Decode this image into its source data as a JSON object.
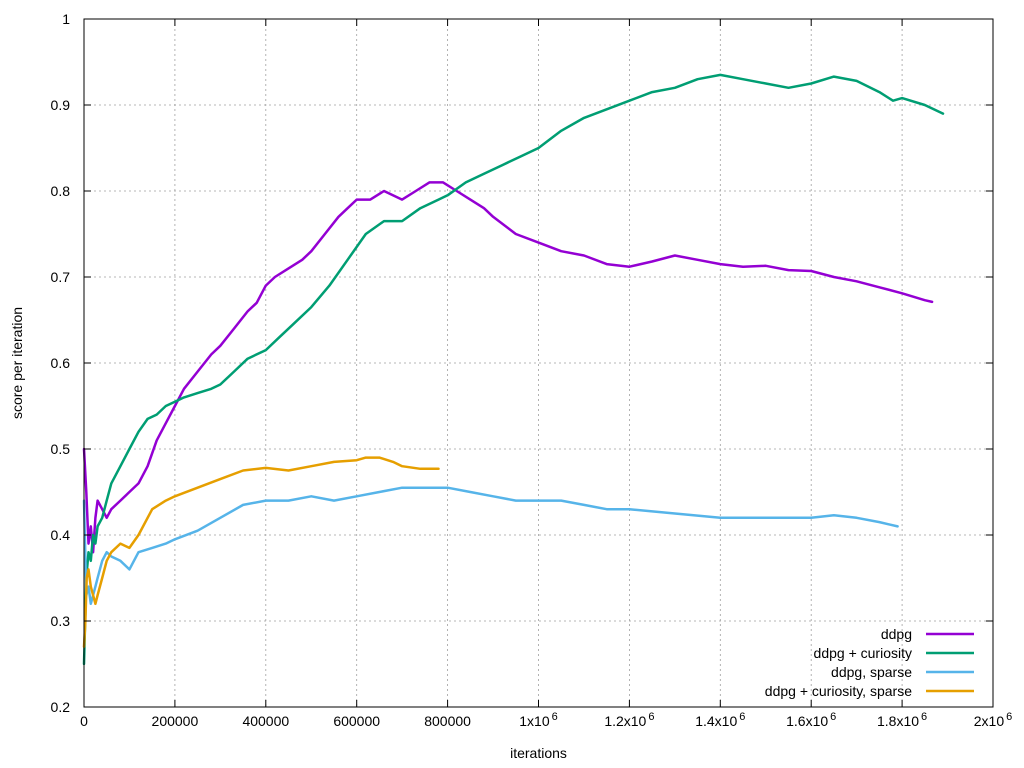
{
  "chart_data": {
    "type": "line",
    "xlabel": "iterations",
    "ylabel": "score per iteration",
    "xlim": [
      0,
      2000000
    ],
    "ylim": [
      0.2,
      1.0
    ],
    "grid": true,
    "legend_position": "bottom-right",
    "x_ticks": [
      {
        "value": 0,
        "base": "0",
        "sup": ""
      },
      {
        "value": 200000,
        "base": "200000",
        "sup": ""
      },
      {
        "value": 400000,
        "base": "400000",
        "sup": ""
      },
      {
        "value": 600000,
        "base": "600000",
        "sup": ""
      },
      {
        "value": 800000,
        "base": "800000",
        "sup": ""
      },
      {
        "value": 1000000,
        "base": "1x10",
        "sup": "6"
      },
      {
        "value": 1200000,
        "base": "1.2x10",
        "sup": "6"
      },
      {
        "value": 1400000,
        "base": "1.4x10",
        "sup": "6"
      },
      {
        "value": 1600000,
        "base": "1.6x10",
        "sup": "6"
      },
      {
        "value": 1800000,
        "base": "1.8x10",
        "sup": "6"
      },
      {
        "value": 2000000,
        "base": "2x10",
        "sup": "6"
      }
    ],
    "y_ticks": [
      {
        "value": 0.2,
        "label": "0.2"
      },
      {
        "value": 0.3,
        "label": "0.3"
      },
      {
        "value": 0.4,
        "label": "0.4"
      },
      {
        "value": 0.5,
        "label": "0.5"
      },
      {
        "value": 0.6,
        "label": "0.6"
      },
      {
        "value": 0.7,
        "label": "0.7"
      },
      {
        "value": 0.8,
        "label": "0.8"
      },
      {
        "value": 0.9,
        "label": "0.9"
      },
      {
        "value": 1.0,
        "label": "1"
      }
    ],
    "series": [
      {
        "name": "ddpg",
        "color": "#9400d3",
        "x": [
          0,
          5000,
          10000,
          15000,
          20000,
          25000,
          30000,
          40000,
          50000,
          60000,
          80000,
          100000,
          120000,
          140000,
          160000,
          180000,
          200000,
          220000,
          250000,
          280000,
          300000,
          330000,
          360000,
          380000,
          400000,
          420000,
          450000,
          480000,
          500000,
          530000,
          560000,
          580000,
          600000,
          630000,
          660000,
          700000,
          730000,
          760000,
          790000,
          820000,
          850000,
          880000,
          900000,
          950000,
          1000000,
          1050000,
          1100000,
          1150000,
          1200000,
          1250000,
          1300000,
          1350000,
          1400000,
          1450000,
          1500000,
          1550000,
          1600000,
          1650000,
          1700000,
          1750000,
          1800000,
          1850000,
          1866000
        ],
        "y": [
          0.5,
          0.45,
          0.39,
          0.41,
          0.38,
          0.42,
          0.44,
          0.43,
          0.42,
          0.43,
          0.44,
          0.45,
          0.46,
          0.48,
          0.51,
          0.53,
          0.55,
          0.57,
          0.59,
          0.61,
          0.62,
          0.64,
          0.66,
          0.67,
          0.69,
          0.7,
          0.71,
          0.72,
          0.73,
          0.75,
          0.77,
          0.78,
          0.79,
          0.79,
          0.8,
          0.79,
          0.8,
          0.81,
          0.81,
          0.8,
          0.79,
          0.78,
          0.77,
          0.75,
          0.74,
          0.73,
          0.725,
          0.715,
          0.712,
          0.718,
          0.725,
          0.72,
          0.715,
          0.712,
          0.713,
          0.708,
          0.707,
          0.7,
          0.695,
          0.688,
          0.681,
          0.673,
          0.671
        ]
      },
      {
        "name": "ddpg + curiosity",
        "color": "#009e73",
        "x": [
          0,
          5000,
          10000,
          15000,
          20000,
          25000,
          30000,
          40000,
          50000,
          60000,
          80000,
          100000,
          120000,
          140000,
          160000,
          180000,
          200000,
          220000,
          250000,
          280000,
          300000,
          330000,
          360000,
          400000,
          430000,
          460000,
          500000,
          540000,
          580000,
          620000,
          660000,
          700000,
          740000,
          780000,
          800000,
          840000,
          880000,
          920000,
          960000,
          1000000,
          1050000,
          1100000,
          1150000,
          1200000,
          1250000,
          1300000,
          1350000,
          1400000,
          1450000,
          1500000,
          1550000,
          1600000,
          1650000,
          1700000,
          1750000,
          1780000,
          1800000,
          1850000,
          1890000
        ],
        "y": [
          0.25,
          0.35,
          0.38,
          0.37,
          0.4,
          0.39,
          0.41,
          0.42,
          0.44,
          0.46,
          0.48,
          0.5,
          0.52,
          0.535,
          0.54,
          0.55,
          0.555,
          0.56,
          0.565,
          0.57,
          0.575,
          0.59,
          0.605,
          0.615,
          0.63,
          0.645,
          0.665,
          0.69,
          0.72,
          0.75,
          0.765,
          0.765,
          0.78,
          0.79,
          0.795,
          0.81,
          0.82,
          0.83,
          0.84,
          0.85,
          0.87,
          0.885,
          0.895,
          0.905,
          0.915,
          0.92,
          0.93,
          0.935,
          0.93,
          0.925,
          0.92,
          0.925,
          0.933,
          0.928,
          0.915,
          0.905,
          0.908,
          0.9,
          0.89
        ]
      },
      {
        "name": "ddpg, sparse",
        "color": "#56b4e9",
        "x": [
          0,
          5000,
          10000,
          15000,
          20000,
          25000,
          30000,
          40000,
          50000,
          60000,
          80000,
          100000,
          120000,
          150000,
          180000,
          200000,
          250000,
          300000,
          350000,
          400000,
          450000,
          500000,
          550000,
          600000,
          650000,
          700000,
          750000,
          800000,
          850000,
          900000,
          950000,
          1000000,
          1050000,
          1100000,
          1150000,
          1200000,
          1300000,
          1400000,
          1500000,
          1600000,
          1650000,
          1700000,
          1750000,
          1790000
        ],
        "y": [
          0.44,
          0.33,
          0.34,
          0.32,
          0.33,
          0.34,
          0.35,
          0.37,
          0.38,
          0.375,
          0.37,
          0.36,
          0.38,
          0.385,
          0.39,
          0.395,
          0.405,
          0.42,
          0.435,
          0.44,
          0.44,
          0.445,
          0.44,
          0.445,
          0.45,
          0.455,
          0.455,
          0.455,
          0.45,
          0.445,
          0.44,
          0.44,
          0.44,
          0.435,
          0.43,
          0.43,
          0.425,
          0.42,
          0.42,
          0.42,
          0.423,
          0.42,
          0.415,
          0.41
        ]
      },
      {
        "name": "ddpg + curiosity, sparse",
        "color": "#e69f00",
        "x": [
          0,
          3000,
          6000,
          10000,
          15000,
          20000,
          25000,
          30000,
          40000,
          50000,
          60000,
          80000,
          100000,
          120000,
          150000,
          180000,
          200000,
          250000,
          300000,
          350000,
          400000,
          450000,
          500000,
          550000,
          600000,
          620000,
          650000,
          680000,
          700000,
          740000,
          780000
        ],
        "y": [
          0.27,
          0.3,
          0.35,
          0.36,
          0.34,
          0.33,
          0.32,
          0.33,
          0.35,
          0.37,
          0.38,
          0.39,
          0.385,
          0.4,
          0.43,
          0.44,
          0.445,
          0.455,
          0.465,
          0.475,
          0.478,
          0.475,
          0.48,
          0.485,
          0.487,
          0.49,
          0.49,
          0.485,
          0.48,
          0.477,
          0.477
        ]
      }
    ]
  }
}
